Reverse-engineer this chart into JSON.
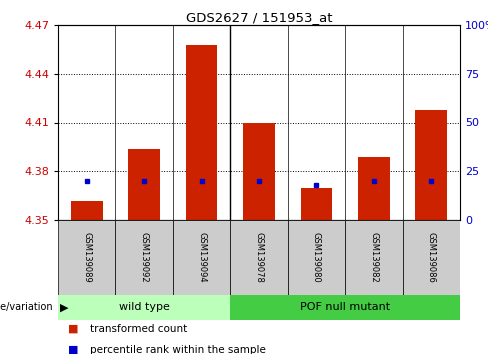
{
  "title": "GDS2627 / 151953_at",
  "samples": [
    "GSM139089",
    "GSM139092",
    "GSM139094",
    "GSM139078",
    "GSM139080",
    "GSM139082",
    "GSM139086"
  ],
  "transformed_counts": [
    4.362,
    4.394,
    4.458,
    4.41,
    4.37,
    4.389,
    4.418
  ],
  "percentile_ranks_pct": [
    20,
    20,
    20,
    20,
    18,
    20,
    20
  ],
  "bar_bottom": 4.35,
  "ylim": [
    4.35,
    4.47
  ],
  "yticks_left": [
    4.35,
    4.38,
    4.41,
    4.44,
    4.47
  ],
  "yticks_right_pct": [
    0,
    25,
    50,
    75,
    100
  ],
  "left_color": "#cc0000",
  "right_color": "#0000cc",
  "bar_color": "#cc2200",
  "blue_color": "#0000cc",
  "grid_color": "#000000",
  "wild_type_color": "#bbffbb",
  "pof_color": "#44cc44",
  "gray_box_color": "#cccccc"
}
